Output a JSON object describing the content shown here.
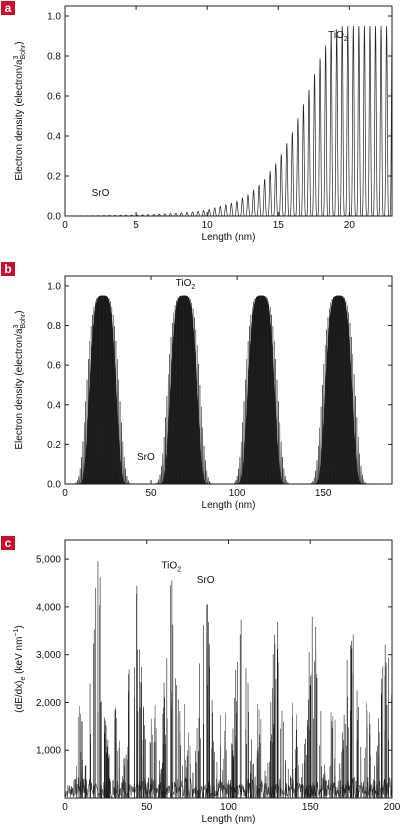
{
  "chart_data": [
    {
      "panel_label": "a",
      "type": "line",
      "xlabel": "Length (nm)",
      "ylabel": "Electron density (electron/a",
      "ylabel_sup": "3",
      "ylabel_sub": "Bohr",
      "ylabel_end": ")",
      "xlim": [
        0,
        23
      ],
      "ylim": [
        0,
        1.05
      ],
      "xticks": [
        "0",
        "5",
        "10",
        "15",
        "20"
      ],
      "yticks": [
        "0.0",
        "0.2",
        "0.4",
        "0.6",
        "0.8",
        "1.0"
      ],
      "series": [
        {
          "x": [
            0,
            5,
            7,
            9,
            10,
            11,
            12,
            13,
            14,
            15,
            16,
            17,
            17.5,
            18,
            18.5,
            19,
            19.5,
            23
          ],
          "y": [
            0.0,
            0.005,
            0.01,
            0.02,
            0.03,
            0.05,
            0.07,
            0.11,
            0.18,
            0.28,
            0.42,
            0.6,
            0.7,
            0.8,
            0.88,
            0.93,
            0.95,
            0.95
          ]
        }
      ],
      "oscillation_period": 0.39,
      "annotations": [
        {
          "text": "SrO",
          "x": 2.5,
          "y": 0.1
        },
        {
          "text": "TiO",
          "sub": "2",
          "x": 19.2,
          "y": 0.89
        }
      ]
    },
    {
      "panel_label": "b",
      "type": "line",
      "xlabel": "Length (nm)",
      "ylabel": "Electron density (electron/a",
      "ylabel_sup": "3",
      "ylabel_sub": "Bohr",
      "ylabel_end": ")",
      "xlim": [
        0,
        190
      ],
      "ylim": [
        0,
        1.05
      ],
      "xticks": [
        "0",
        "50",
        "100",
        "150"
      ],
      "yticks": [
        "0.0",
        "0.2",
        "0.4",
        "0.6",
        "0.8",
        "1.0"
      ],
      "peaks": [
        {
          "center": 22,
          "max": 0.95
        },
        {
          "center": 69,
          "max": 0.95
        },
        {
          "center": 114,
          "max": 0.95
        },
        {
          "center": 159,
          "max": 0.95
        }
      ],
      "annotations": [
        {
          "text": "SrO",
          "x": 47,
          "y": 0.12
        },
        {
          "text": "TiO",
          "sub": "2",
          "x": 70,
          "y": 1.0
        }
      ]
    },
    {
      "panel_label": "c",
      "type": "line",
      "xlabel": "Length (nm)",
      "ylabel": "(dE/dx)",
      "ylabel_sub": "e",
      "ylabel_end": " (keV nm",
      "ylabel_sup": "−1",
      "ylabel_close": ")",
      "xlim": [
        0,
        200
      ],
      "ylim": [
        0,
        5400
      ],
      "xticks": [
        "0",
        "50",
        "100",
        "150",
        "200"
      ],
      "yticks": [
        "1,000",
        "2,000",
        "3,000",
        "4,000",
        "5,000"
      ],
      "clusters": [
        {
          "center": 20,
          "peak": 5000
        },
        {
          "center": 43,
          "peak": 4700
        },
        {
          "center": 65,
          "peak": 4650
        },
        {
          "center": 86,
          "peak": 4450
        },
        {
          "center": 108,
          "peak": 4250
        },
        {
          "center": 130,
          "peak": 4000
        },
        {
          "center": 152,
          "peak": 3900
        },
        {
          "center": 175,
          "peak": 3700
        },
        {
          "center": 196,
          "peak": 3500
        }
      ],
      "annotations": [
        {
          "text": "TiO",
          "sub": "2",
          "x": 65,
          "y": 4800
        },
        {
          "text": "SrO",
          "x": 86,
          "y": 4500
        }
      ]
    }
  ]
}
